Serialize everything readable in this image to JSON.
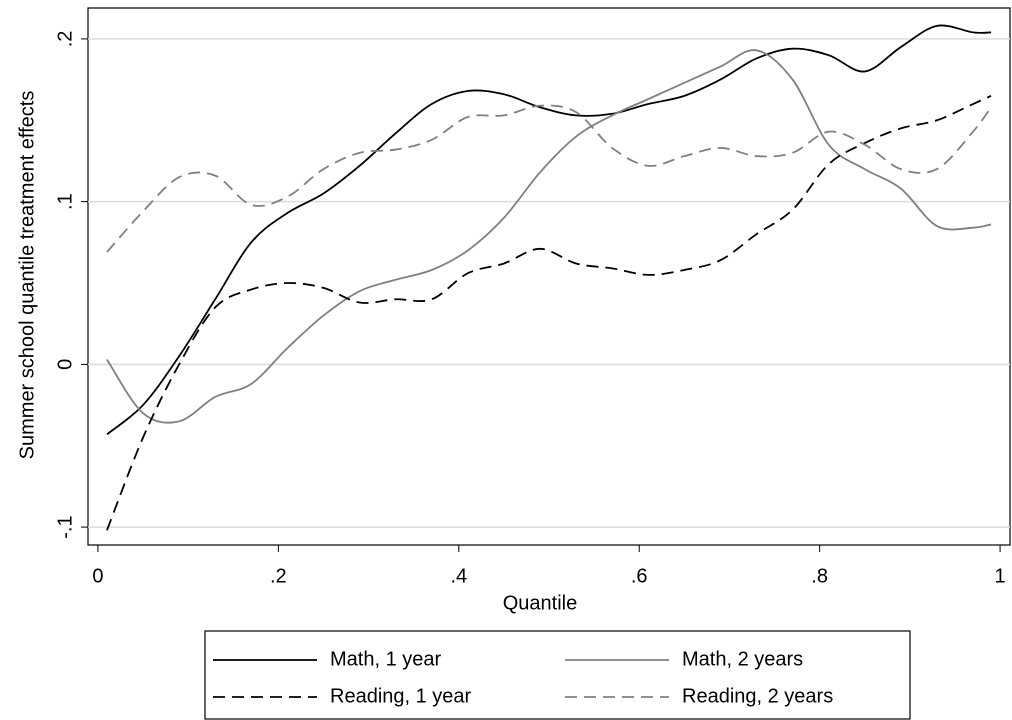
{
  "chart_data": {
    "type": "line",
    "ylabel": "Summer school quantile treatment effects",
    "xlabel": "Quantile",
    "x": [
      0.01,
      0.05,
      0.09,
      0.13,
      0.17,
      0.21,
      0.25,
      0.29,
      0.33,
      0.37,
      0.41,
      0.45,
      0.49,
      0.53,
      0.57,
      0.61,
      0.65,
      0.69,
      0.73,
      0.77,
      0.81,
      0.85,
      0.89,
      0.93,
      0.97,
      0.99
    ],
    "series": [
      {
        "name": "Math, 1 year",
        "color": "#000000",
        "dashed": false,
        "values": [
          -0.043,
          -0.025,
          0.005,
          0.04,
          0.075,
          0.093,
          0.105,
          0.122,
          0.142,
          0.16,
          0.168,
          0.166,
          0.158,
          0.153,
          0.154,
          0.16,
          0.165,
          0.175,
          0.188,
          0.194,
          0.19,
          0.18,
          0.195,
          0.208,
          0.204,
          0.204
        ]
      },
      {
        "name": "Math, 2 years",
        "color": "#808080",
        "dashed": false,
        "values": [
          0.003,
          -0.03,
          -0.035,
          -0.02,
          -0.012,
          0.01,
          0.03,
          0.045,
          0.052,
          0.058,
          0.07,
          0.09,
          0.118,
          0.14,
          0.153,
          0.163,
          0.173,
          0.183,
          0.193,
          0.175,
          0.135,
          0.12,
          0.108,
          0.085,
          0.084,
          0.086
        ]
      },
      {
        "name": "Reading, 1 year",
        "color": "#000000",
        "dashed": true,
        "values": [
          -0.102,
          -0.045,
          0.0,
          0.035,
          0.046,
          0.05,
          0.047,
          0.038,
          0.04,
          0.04,
          0.056,
          0.062,
          0.071,
          0.062,
          0.059,
          0.055,
          0.058,
          0.064,
          0.08,
          0.095,
          0.123,
          0.136,
          0.145,
          0.15,
          0.16,
          0.165
        ]
      },
      {
        "name": "Reading, 2 years",
        "color": "#808080",
        "dashed": true,
        "values": [
          0.069,
          0.094,
          0.115,
          0.116,
          0.098,
          0.103,
          0.12,
          0.13,
          0.132,
          0.138,
          0.152,
          0.153,
          0.159,
          0.155,
          0.133,
          0.122,
          0.128,
          0.133,
          0.128,
          0.13,
          0.143,
          0.135,
          0.12,
          0.12,
          0.143,
          0.158
        ]
      }
    ],
    "xlim": [
      -0.011,
      1.011
    ],
    "ylim": [
      -0.111,
      0.219
    ],
    "xticks": [
      0,
      {
        "value": 0.2,
        "label": ".2"
      },
      {
        "value": 0.4,
        "label": ".4"
      },
      {
        "value": 0.6,
        "label": ".6"
      },
      {
        "value": 0.8,
        "label": ".8"
      },
      1
    ],
    "yticks": [
      {
        "value": -0.1,
        "label": "-.1"
      },
      0,
      {
        "value": 0.1,
        "label": ".1"
      },
      {
        "value": 0.2,
        "label": ".2"
      }
    ],
    "grid": true,
    "legend": "bottom"
  }
}
